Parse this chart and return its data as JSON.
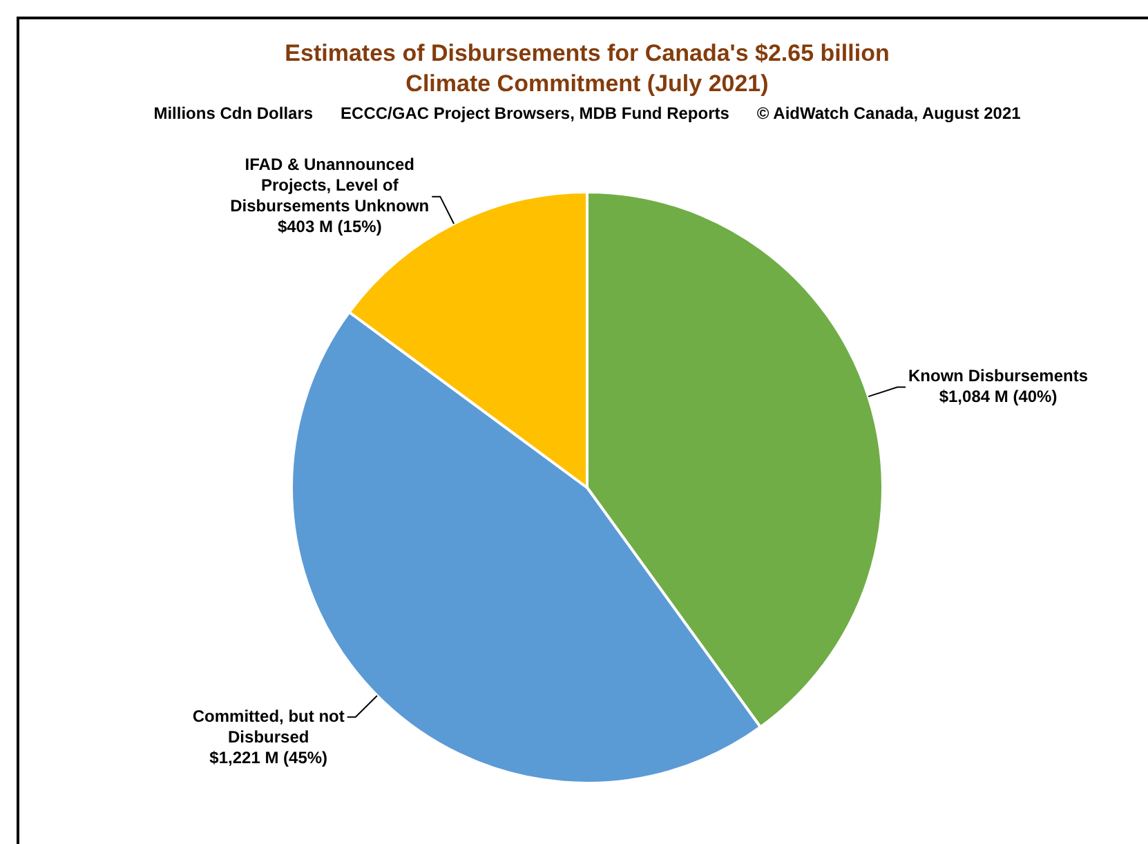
{
  "chart_data": {
    "type": "pie",
    "title": "Estimates of Disbursements for Canada's $2.65 billion Climate Commitment (July 2021)",
    "subtitle": "Millions Cdn Dollars      ECCC/GAC Project Browsers, MDB Fund Reports      © AidWatch Canada, August 2021",
    "categories": [
      "Known Disbursements",
      "Committed, but not Disbursed",
      "IFAD & Unannounced Projects, Level of Disbursements Unknown"
    ],
    "values": [
      1084,
      1221,
      403
    ],
    "value_labels": [
      "$1,084 M (40%)",
      "$1,221 M (45%)",
      "$403 M (15%)"
    ],
    "colors": [
      "#70ad47",
      "#5b9bd5",
      "#ffc000"
    ],
    "legend": false
  }
}
